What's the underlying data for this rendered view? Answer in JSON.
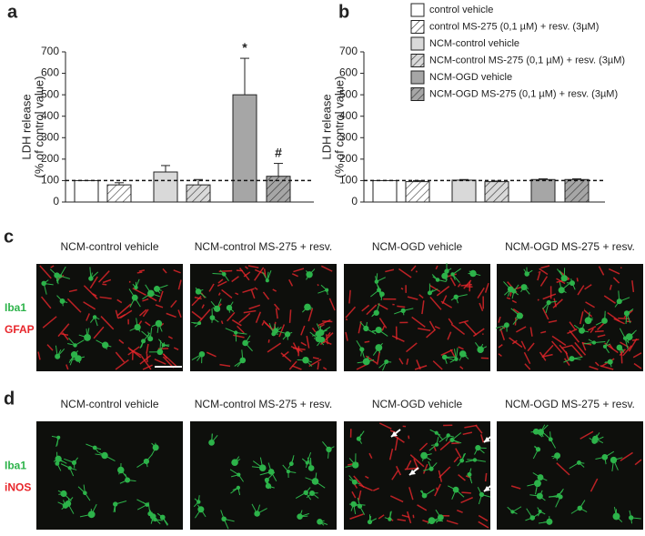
{
  "chart_data": [
    {
      "type": "bar",
      "panel": "a",
      "ylabel": [
        "LDH release",
        "(% of control value)"
      ],
      "categories": [
        null,
        null,
        null,
        null,
        null,
        null
      ],
      "values": [
        100,
        80,
        140,
        80,
        500,
        120
      ],
      "errors": [
        0,
        10,
        30,
        25,
        170,
        60
      ],
      "colors": [
        "#ffffff",
        "#ffffff",
        "#d9d9d9",
        "#d9d9d9",
        "#a6a6a6",
        "#a6a6a6"
      ],
      "hatch": [
        false,
        true,
        false,
        true,
        false,
        true
      ],
      "annotations": [
        null,
        null,
        null,
        null,
        "*",
        "#"
      ],
      "reference_line": 100,
      "ylim": [
        0,
        700
      ],
      "yticks": [
        0,
        100,
        200,
        300,
        400,
        500,
        600,
        700
      ]
    },
    {
      "type": "bar",
      "panel": "b",
      "ylabel": [
        "LDH release",
        "(% of control value)"
      ],
      "categories": [
        null,
        null,
        null,
        null,
        null,
        null
      ],
      "values": [
        100,
        95,
        102,
        95,
        105,
        105
      ],
      "errors": [
        0,
        5,
        3,
        3,
        3,
        3
      ],
      "colors": [
        "#ffffff",
        "#ffffff",
        "#d9d9d9",
        "#d9d9d9",
        "#a6a6a6",
        "#a6a6a6"
      ],
      "hatch": [
        false,
        true,
        false,
        true,
        false,
        true
      ],
      "reference_line": 100,
      "ylim": [
        0,
        700
      ],
      "yticks": [
        0,
        100,
        200,
        300,
        400,
        500,
        600,
        700
      ],
      "legend": [
        {
          "name": "control vehicle",
          "color": "#ffffff",
          "hatch": false
        },
        {
          "name": "control MS-275 (0,1 µM)  + resv. (3µM)",
          "color": "#ffffff",
          "hatch": true
        },
        {
          "name": "NCM-control vehicle",
          "color": "#d9d9d9",
          "hatch": false
        },
        {
          "name": "NCM-control MS-275 (0,1 µM)  + resv. (3µM)",
          "color": "#d9d9d9",
          "hatch": true
        },
        {
          "name": "NCM-OGD vehicle",
          "color": "#a6a6a6",
          "hatch": false
        },
        {
          "name": "NCM-OGD MS-275 (0,1 µM)  + resv. (3µM)",
          "color": "#a6a6a6",
          "hatch": true
        }
      ]
    }
  ],
  "panels": [
    {
      "label": "c",
      "columns": [
        "NCM-control vehicle",
        "NCM-control MS-275 + resv.",
        "NCM-OGD vehicle",
        "NCM-OGD MS-275 + resv."
      ],
      "stains": [
        {
          "text": "Iba1",
          "color": "#2db34a"
        },
        {
          "text": "GFAP",
          "color": "#e8262b"
        }
      ]
    },
    {
      "label": "d",
      "columns": [
        "NCM-control vehicle",
        "NCM-control MS-275 + resv.",
        "NCM-OGD vehicle",
        "NCM-OGD MS-275 + resv."
      ],
      "stains": [
        {
          "text": "Iba1",
          "color": "#2db34a"
        },
        {
          "text": "iNOS",
          "color": "#e8262b"
        }
      ]
    }
  ]
}
